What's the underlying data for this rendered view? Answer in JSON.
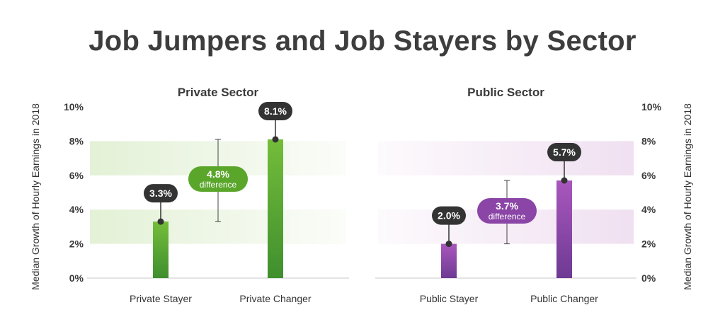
{
  "title": "Job Jumpers and Job Stayers by Sector",
  "colors": {
    "private_bar": "#4f9a2f",
    "private_band": "#e3f1d6",
    "private_pill": "#5aa62b",
    "public_bar": "#8a45a6",
    "public_band": "#f0e0f1",
    "public_pill": "#8a45a6",
    "label_bubble": "#333333"
  },
  "chart_data": [
    {
      "type": "bar",
      "title": "Private Sector",
      "ylabel": "Median Growth of Hourly Earnings in 2018",
      "ylim": [
        0,
        10
      ],
      "yticks": [
        "0%",
        "2%",
        "4%",
        "6%",
        "8%",
        "10%"
      ],
      "categories": [
        "Private Stayer",
        "Private Changer"
      ],
      "values": [
        3.3,
        8.1
      ],
      "value_labels": [
        "3.3%",
        "8.1%"
      ],
      "difference": {
        "value": "4.8%",
        "text": "difference"
      }
    },
    {
      "type": "bar",
      "title": "Public Sector",
      "ylabel": "Median Growth of Hourly Earnings in 2018",
      "ylim": [
        0,
        10
      ],
      "yticks": [
        "0%",
        "2%",
        "4%",
        "6%",
        "8%",
        "10%"
      ],
      "categories": [
        "Public Stayer",
        "Public Changer"
      ],
      "values": [
        2.0,
        5.7
      ],
      "value_labels": [
        "2.0%",
        "5.7%"
      ],
      "difference": {
        "value": "3.7%",
        "text": "difference"
      }
    }
  ]
}
